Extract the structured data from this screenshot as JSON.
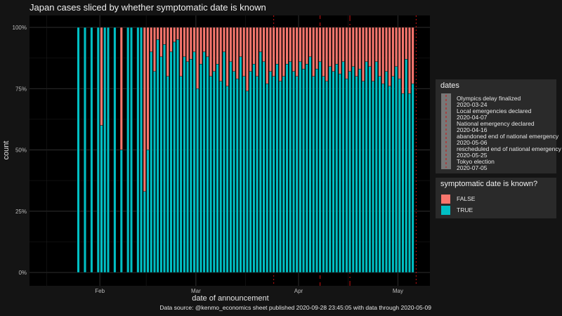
{
  "chart_data": {
    "type": "bar",
    "stacked": "percent",
    "title": "Japan cases sliced by whether symptomatic date is known",
    "xlabel": "date of announcement",
    "ylabel": "count",
    "x_ticks": [
      "Feb",
      "Mar",
      "Apr",
      "May"
    ],
    "y_ticks": [
      "0%",
      "25%",
      "50%",
      "75%",
      "100%"
    ],
    "ylim": [
      0,
      1
    ],
    "start_date": "2020-01-15",
    "days_shown": 112,
    "series": [
      {
        "name": "FALSE",
        "color": "#f8766d"
      },
      {
        "name": "TRUE",
        "color": "#00bfc4"
      }
    ],
    "true_share_by_day": [
      null,
      null,
      null,
      null,
      null,
      null,
      null,
      null,
      null,
      null,
      1,
      null,
      1,
      null,
      1,
      null,
      1,
      0.6,
      1,
      1,
      null,
      1,
      null,
      0.5,
      null,
      1,
      1,
      null,
      1,
      1,
      0.33,
      0.5,
      0.9,
      0.82,
      0.95,
      0.88,
      0.93,
      0.8,
      0.9,
      0.94,
      0.95,
      0.8,
      0.88,
      0.86,
      0.87,
      0.9,
      0.75,
      0.85,
      0.9,
      0.88,
      0.8,
      0.82,
      0.85,
      0.78,
      0.9,
      0.76,
      0.86,
      0.82,
      0.79,
      0.88,
      0.8,
      0.74,
      0.82,
      0.85,
      0.8,
      0.9,
      0.86,
      0.77,
      0.82,
      0.8,
      0.85,
      0.78,
      0.8,
      0.85,
      0.86,
      0.82,
      0.8,
      0.86,
      0.83,
      0.85,
      0.88,
      0.8,
      0.83,
      0.86,
      0.8,
      0.78,
      0.84,
      0.82,
      0.85,
      0.81,
      0.86,
      0.79,
      0.82,
      0.84,
      0.8,
      0.83,
      0.78,
      0.86,
      0.84,
      0.78,
      0.86,
      0.8,
      0.77,
      0.82,
      0.76,
      0.8,
      0.84,
      0.79,
      0.73,
      0.87,
      0.73,
      0.77
    ]
  },
  "legend_dates": {
    "title": "dates",
    "entries": [
      "Olympics delay finalized",
      "2020-03-24",
      "Local emergencies declared",
      "2020-04-07",
      "National emergency declared",
      "2020-04-16",
      "abandoned end of national emergency",
      "2020-05-06",
      "rescheduled end of national emergency",
      "2020-05-25",
      "Tokyo election",
      "2020-07-05"
    ]
  },
  "legend_symptomatic": {
    "title": "symptomatic date is known?",
    "items": [
      {
        "label": "FALSE",
        "color": "#f8766d"
      },
      {
        "label": "TRUE",
        "color": "#00bfc4"
      }
    ]
  },
  "event_lines": [
    {
      "date": "2020-03-24",
      "color": "#cc1111",
      "dash": "2,3"
    },
    {
      "date": "2020-04-07",
      "color": "#cc1111",
      "dash": "5,5"
    },
    {
      "date": "2020-04-16",
      "color": "#cc1111",
      "dash": "8,4,2,4"
    },
    {
      "date": "2020-05-06",
      "color": "#cc1111",
      "dash": "2,3"
    }
  ],
  "caption": "Data source: @kenmo_economics sheet published 2020-09-28 23:45:05 with data through 2020-05-09"
}
